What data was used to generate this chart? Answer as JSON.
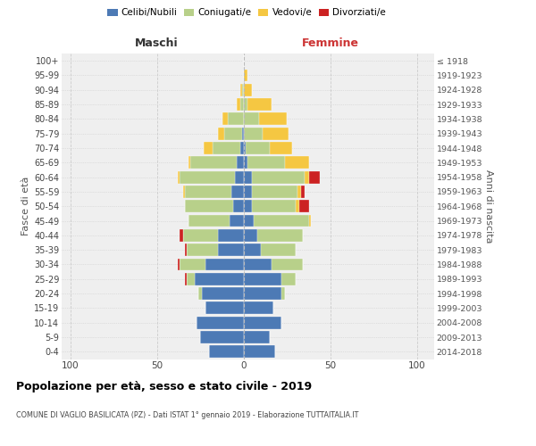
{
  "age_groups": [
    "0-4",
    "5-9",
    "10-14",
    "15-19",
    "20-24",
    "25-29",
    "30-34",
    "35-39",
    "40-44",
    "45-49",
    "50-54",
    "55-59",
    "60-64",
    "65-69",
    "70-74",
    "75-79",
    "80-84",
    "85-89",
    "90-94",
    "95-99",
    "100+"
  ],
  "birth_years": [
    "2014-2018",
    "2009-2013",
    "2004-2008",
    "1999-2003",
    "1994-1998",
    "1989-1993",
    "1984-1988",
    "1979-1983",
    "1974-1978",
    "1969-1973",
    "1964-1968",
    "1959-1963",
    "1954-1958",
    "1949-1953",
    "1944-1948",
    "1939-1943",
    "1934-1938",
    "1929-1933",
    "1924-1928",
    "1919-1923",
    "≤ 1918"
  ],
  "maschi": {
    "celibi": [
      20,
      25,
      27,
      22,
      24,
      28,
      22,
      15,
      15,
      8,
      6,
      7,
      5,
      4,
      2,
      1,
      0,
      0,
      0,
      0,
      0
    ],
    "coniugati": [
      0,
      0,
      0,
      0,
      2,
      5,
      15,
      18,
      20,
      24,
      28,
      27,
      32,
      27,
      16,
      10,
      9,
      2,
      1,
      0,
      0
    ],
    "vedovi": [
      0,
      0,
      0,
      0,
      0,
      0,
      0,
      0,
      0,
      0,
      0,
      1,
      1,
      1,
      5,
      4,
      3,
      2,
      1,
      0,
      0
    ],
    "divorziati": [
      0,
      0,
      0,
      0,
      0,
      1,
      1,
      1,
      2,
      0,
      0,
      0,
      0,
      0,
      0,
      0,
      0,
      0,
      0,
      0,
      0
    ]
  },
  "femmine": {
    "nubili": [
      18,
      15,
      22,
      17,
      22,
      22,
      16,
      10,
      8,
      6,
      5,
      5,
      5,
      2,
      1,
      0,
      0,
      0,
      0,
      0,
      0
    ],
    "coniugate": [
      0,
      0,
      0,
      0,
      2,
      8,
      18,
      20,
      26,
      32,
      25,
      26,
      30,
      22,
      14,
      11,
      9,
      2,
      0,
      0,
      0
    ],
    "vedove": [
      0,
      0,
      0,
      0,
      0,
      0,
      0,
      0,
      0,
      1,
      2,
      2,
      3,
      14,
      13,
      15,
      16,
      14,
      5,
      2,
      0
    ],
    "divorziate": [
      0,
      0,
      0,
      0,
      0,
      0,
      0,
      0,
      0,
      0,
      6,
      2,
      6,
      0,
      0,
      0,
      0,
      0,
      0,
      0,
      0
    ]
  },
  "colors": {
    "celibi": "#4d7ab5",
    "coniugati": "#b8d08a",
    "vedovi": "#f5c742",
    "divorziati": "#cc2222"
  },
  "xlim": [
    -105,
    110
  ],
  "xticks": [
    -100,
    -50,
    0,
    50,
    100
  ],
  "xticklabels": [
    "100",
    "50",
    "0",
    "50",
    "100"
  ],
  "title": "Popolazione per età, sesso e stato civile - 2019",
  "subtitle": "COMUNE DI VAGLIO BASILICATA (PZ) - Dati ISTAT 1° gennaio 2019 - Elaborazione TUTTAITALIA.IT",
  "ylabel_left": "Fasce di età",
  "ylabel_right": "Anni di nascita",
  "label_maschi": "Maschi",
  "label_femmine": "Femmine",
  "legend_labels": [
    "Celibi/Nubili",
    "Coniugati/e",
    "Vedovi/e",
    "Divorziati/e"
  ],
  "bar_height": 0.85,
  "bg_color": "#efefef",
  "grid_color": "#cccccc"
}
